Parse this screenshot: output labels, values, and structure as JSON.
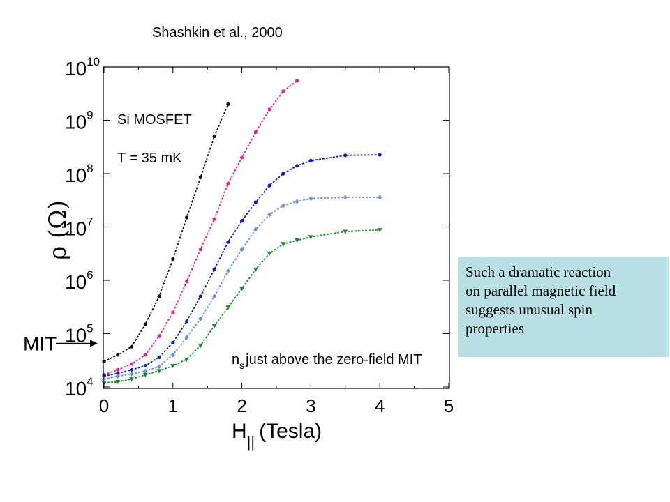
{
  "chart_data": {
    "type": "scatter",
    "title": "Shashkin et al., 2000",
    "xlabel": "H",
    "xlabel_subscript": "||",
    "xlabel_unit": "(Tesla)",
    "ylabel": "ρ (Ω)",
    "xlim": [
      0,
      5
    ],
    "ylim": [
      10000,
      10000000000
    ],
    "yscale": "log",
    "grid": false,
    "x_ticks": [
      "0",
      "1",
      "2",
      "3",
      "4",
      "5"
    ],
    "y_ticks": [
      {
        "base": "10",
        "exp": "4",
        "value": 10000
      },
      {
        "base": "10",
        "exp": "5",
        "value": 100000
      },
      {
        "base": "10",
        "exp": "6",
        "value": 1000000
      },
      {
        "base": "10",
        "exp": "7",
        "value": 10000000
      },
      {
        "base": "10",
        "exp": "8",
        "value": 100000000
      },
      {
        "base": "10",
        "exp": "9",
        "value": 1000000000
      },
      {
        "base": "10",
        "exp": "10",
        "value": 10000000000
      }
    ],
    "annotations": {
      "sample": "Si MOSFET",
      "temperature": "T = 35 mK",
      "density_symbol": "n",
      "density_subscript": "s",
      "density_text": "just above the zero-field MIT",
      "mit_label": "MIT"
    },
    "mit_level": 100000,
    "series": [
      {
        "color": "#111111",
        "marker": "circle",
        "x": [
          0,
          0.2,
          0.4,
          0.6,
          0.8,
          1.0,
          1.2,
          1.4,
          1.6,
          1.8
        ],
        "y": [
          30000,
          40000,
          57000,
          150000,
          500000,
          2500000,
          15000000,
          85000000,
          500000000,
          2000000000
        ]
      },
      {
        "color": "#e0248a",
        "marker": "circle",
        "x": [
          0,
          0.2,
          0.4,
          0.6,
          0.8,
          1.0,
          1.2,
          1.4,
          1.6,
          1.8,
          2.0,
          2.2,
          2.4,
          2.6,
          2.8
        ],
        "y": [
          17000,
          21000,
          27000,
          40000,
          90000,
          250000,
          950000,
          3800000,
          14000000,
          65000000,
          200000000,
          600000000,
          1600000000,
          3500000000,
          5500000000
        ]
      },
      {
        "color": "#0b1fb5",
        "marker": "circle",
        "x": [
          0,
          0.2,
          0.4,
          0.6,
          0.8,
          1.0,
          1.2,
          1.4,
          1.6,
          1.8,
          2.0,
          2.2,
          2.4,
          2.6,
          2.8,
          3.0,
          3.5,
          4.0
        ],
        "y": [
          16000,
          18000,
          21000,
          25000,
          36000,
          68000,
          170000,
          500000,
          1600000,
          5200000,
          13000000,
          29000000,
          60000000,
          100000000,
          140000000,
          175000000,
          220000000,
          225000000
        ]
      },
      {
        "color": "#6a8ee0",
        "marker": "diamond",
        "x": [
          0,
          0.2,
          0.4,
          0.6,
          0.8,
          1.0,
          1.2,
          1.4,
          1.6,
          1.8,
          2.0,
          2.2,
          2.4,
          2.6,
          2.8,
          3.0,
          3.5,
          4.0
        ],
        "y": [
          14000,
          16000,
          17500,
          20000,
          24000,
          40000,
          85000,
          190000,
          500000,
          1500000,
          3800000,
          9000000,
          17000000,
          25000000,
          30000000,
          34000000,
          36000000,
          36000000
        ]
      },
      {
        "color": "#1a8a2c",
        "marker": "triangle-down",
        "x": [
          0,
          0.2,
          0.4,
          0.6,
          0.8,
          1.0,
          1.2,
          1.4,
          1.6,
          1.8,
          2.0,
          2.2,
          2.4,
          2.6,
          2.8,
          3.0,
          3.5,
          4.0
        ],
        "y": [
          12000,
          12500,
          14000,
          17000,
          20000,
          25000,
          33000,
          60000,
          140000,
          310000,
          700000,
          1600000,
          3200000,
          4800000,
          5600000,
          6500000,
          8200000,
          8800000
        ]
      }
    ]
  },
  "callout": {
    "lines": [
      "Such a dramatic reaction",
      "on parallel magnetic field",
      "suggests unusual spin",
      "properties"
    ]
  }
}
